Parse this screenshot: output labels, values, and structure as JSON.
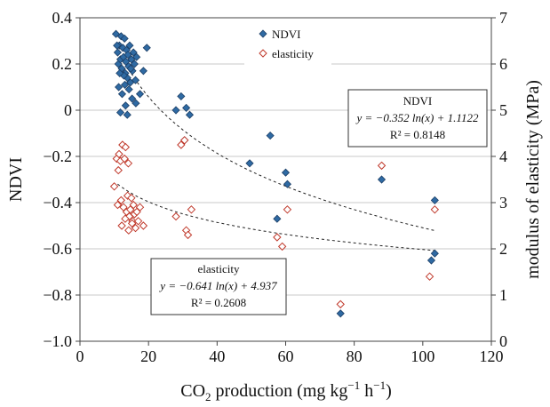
{
  "chart_data": {
    "type": "scatter",
    "x_axis": {
      "label_parts": [
        "CO",
        "2",
        " production (mg kg",
        "−1",
        " h",
        "−1",
        ")"
      ],
      "range": [
        0,
        120
      ],
      "ticks": [
        "0",
        "20",
        "40",
        "60",
        "80",
        "100",
        "120"
      ]
    },
    "y_axis_left": {
      "label": "NDVI",
      "range": [
        -1.0,
        0.4
      ],
      "ticks": [
        "−1.0",
        "−0.8",
        "−0.6",
        "−0.4",
        "−0.2",
        "0",
        "0.2",
        "0.4"
      ]
    },
    "y_axis_right": {
      "label": "modulus of elasticity (MPa)",
      "range": [
        0,
        7
      ],
      "ticks": [
        "0",
        "1",
        "2",
        "3",
        "4",
        "5",
        "6",
        "7"
      ]
    },
    "grid": "horizontal",
    "legend_position": "top",
    "series": [
      {
        "name": "NDVI",
        "axis": "left",
        "marker": "filled-diamond",
        "color": "#2f6aa3",
        "points": [
          [
            10.5,
            0.33
          ],
          [
            11.0,
            0.25
          ],
          [
            11.2,
            0.2
          ],
          [
            11.5,
            0.28
          ],
          [
            11.8,
            0.22
          ],
          [
            12.0,
            0.32
          ],
          [
            12.2,
            0.18
          ],
          [
            12.5,
            0.27
          ],
          [
            12.7,
            0.23
          ],
          [
            13.0,
            0.31
          ],
          [
            13.2,
            0.16
          ],
          [
            13.4,
            0.21
          ],
          [
            13.6,
            0.26
          ],
          [
            13.8,
            0.14
          ],
          [
            14.0,
            0.24
          ],
          [
            14.2,
            0.19
          ],
          [
            14.5,
            0.28
          ],
          [
            14.7,
            0.12
          ],
          [
            15.0,
            0.22
          ],
          [
            15.3,
            0.17
          ],
          [
            15.6,
            0.25
          ],
          [
            15.9,
            0.2
          ],
          [
            16.2,
            0.13
          ],
          [
            16.5,
            0.23
          ],
          [
            17.5,
            0.07
          ],
          [
            18.5,
            0.17
          ],
          [
            19.5,
            0.27
          ],
          [
            11.3,
            0.1
          ],
          [
            12.3,
            0.07
          ],
          [
            13.3,
            0.02
          ],
          [
            14.3,
            0.09
          ],
          [
            15.2,
            0.05
          ],
          [
            16.3,
            0.03
          ],
          [
            11.8,
            -0.01
          ],
          [
            13.8,
            -0.02
          ],
          [
            12.8,
            0.15
          ],
          [
            14.8,
            0.18
          ],
          [
            10.8,
            0.28
          ],
          [
            11.6,
            0.16
          ],
          [
            13.1,
            0.11
          ],
          [
            28.0,
            0.0
          ],
          [
            29.5,
            0.06
          ],
          [
            30.5,
            -0.13
          ],
          [
            31.0,
            0.01
          ],
          [
            32.0,
            -0.02
          ],
          [
            49.5,
            -0.23
          ],
          [
            55.5,
            -0.11
          ],
          [
            57.5,
            -0.47
          ],
          [
            60.0,
            -0.27
          ],
          [
            60.5,
            -0.32
          ],
          [
            76.0,
            -0.88
          ],
          [
            88.0,
            -0.3
          ],
          [
            102.5,
            -0.65
          ],
          [
            103.5,
            -0.39
          ],
          [
            103.5,
            -0.62
          ]
        ]
      },
      {
        "name": "elasticity",
        "axis": "right",
        "marker": "open-diamond",
        "color": "#c0392b",
        "points": [
          [
            10.0,
            3.35
          ],
          [
            10.7,
            3.95
          ],
          [
            11.0,
            2.95
          ],
          [
            11.4,
            4.05
          ],
          [
            11.8,
            3.9
          ],
          [
            12.0,
            3.05
          ],
          [
            12.4,
            4.25
          ],
          [
            12.7,
            2.9
          ],
          [
            13.0,
            3.95
          ],
          [
            13.3,
            4.2
          ],
          [
            13.6,
            2.8
          ],
          [
            13.9,
            3.15
          ],
          [
            14.1,
            3.85
          ],
          [
            14.4,
            2.7
          ],
          [
            14.7,
            2.85
          ],
          [
            15.0,
            3.1
          ],
          [
            15.3,
            2.6
          ],
          [
            15.6,
            2.95
          ],
          [
            15.9,
            2.75
          ],
          [
            16.2,
            2.45
          ],
          [
            16.6,
            2.8
          ],
          [
            17.0,
            2.6
          ],
          [
            17.5,
            2.9
          ],
          [
            18.5,
            2.5
          ],
          [
            11.2,
            3.7
          ],
          [
            12.2,
            2.5
          ],
          [
            13.2,
            2.65
          ],
          [
            14.2,
            2.4
          ],
          [
            15.2,
            2.55
          ],
          [
            28.0,
            2.7
          ],
          [
            29.5,
            4.25
          ],
          [
            30.5,
            4.35
          ],
          [
            31.0,
            2.4
          ],
          [
            31.5,
            2.3
          ],
          [
            32.5,
            2.85
          ],
          [
            57.5,
            2.25
          ],
          [
            59.0,
            2.05
          ],
          [
            60.5,
            2.85
          ],
          [
            76.0,
            0.8
          ],
          [
            88.0,
            3.8
          ],
          [
            102.0,
            1.4
          ],
          [
            103.5,
            2.85
          ]
        ]
      }
    ],
    "trendlines": [
      {
        "series": "NDVI",
        "axis": "left",
        "a": -0.352,
        "b": 1.1122,
        "x_from": 15,
        "x_to": 103.5
      },
      {
        "series": "elasticity",
        "axis": "right",
        "a": -0.641,
        "b": 4.937,
        "x_from": 11,
        "x_to": 103.5
      }
    ],
    "annotations": [
      {
        "title": "NDVI",
        "equation": "y = −0.352 ln(x) + 1.1122",
        "r2": "R² = 0.8148"
      },
      {
        "title": "elasticity",
        "equation": "y = −0.641 ln(x) + 4.937",
        "r2": "R² = 0.2608"
      }
    ]
  }
}
